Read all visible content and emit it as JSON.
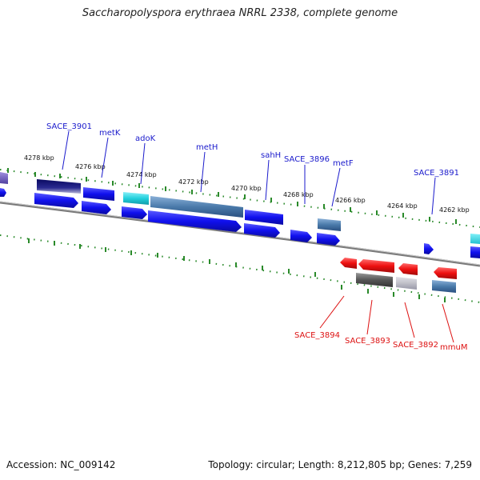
{
  "title": "Saccharopolyspora erythraea NRRL 2338, complete genome",
  "footer": {
    "accession": "Accession: NC_009142",
    "summary": "Topology: circular; Length: 8,212,805 bp; Genes: 7,259"
  },
  "colors": {
    "forward_gene": "#1010ee",
    "reverse_gene": "#ee1010",
    "label_forward": "#1a1acc",
    "label_reverse": "#dd1111",
    "tick": "#2a8a2a",
    "backbone": "#808080",
    "cyan_gene": "#22d0dd",
    "steel_gene": "#4a7aaa",
    "navy_gene": "#0a0a70",
    "grey_gene": "#666666",
    "lightgrey_gene": "#c0c0c8"
  },
  "ticks": [
    {
      "label": "4278 kbp"
    },
    {
      "label": "4276 kbp"
    },
    {
      "label": "4274 kbp"
    },
    {
      "label": "4272 kbp"
    },
    {
      "label": "4270 kbp"
    },
    {
      "label": "4268 kbp"
    },
    {
      "label": "4266 kbp"
    },
    {
      "label": "4264 kbp"
    },
    {
      "label": "4262 kbp"
    }
  ],
  "forward_genes": [
    {
      "name": "SACE_3901"
    },
    {
      "name": "metK"
    },
    {
      "name": "adoK"
    },
    {
      "name": "metH"
    },
    {
      "name": "sahH"
    },
    {
      "name": "SACE_3896"
    },
    {
      "name": "metF"
    },
    {
      "name": "SACE_3891"
    }
  ],
  "reverse_genes": [
    {
      "name": "SACE_3894"
    },
    {
      "name": "SACE_3893"
    },
    {
      "name": "SACE_3892"
    },
    {
      "name": "mmuM"
    }
  ]
}
